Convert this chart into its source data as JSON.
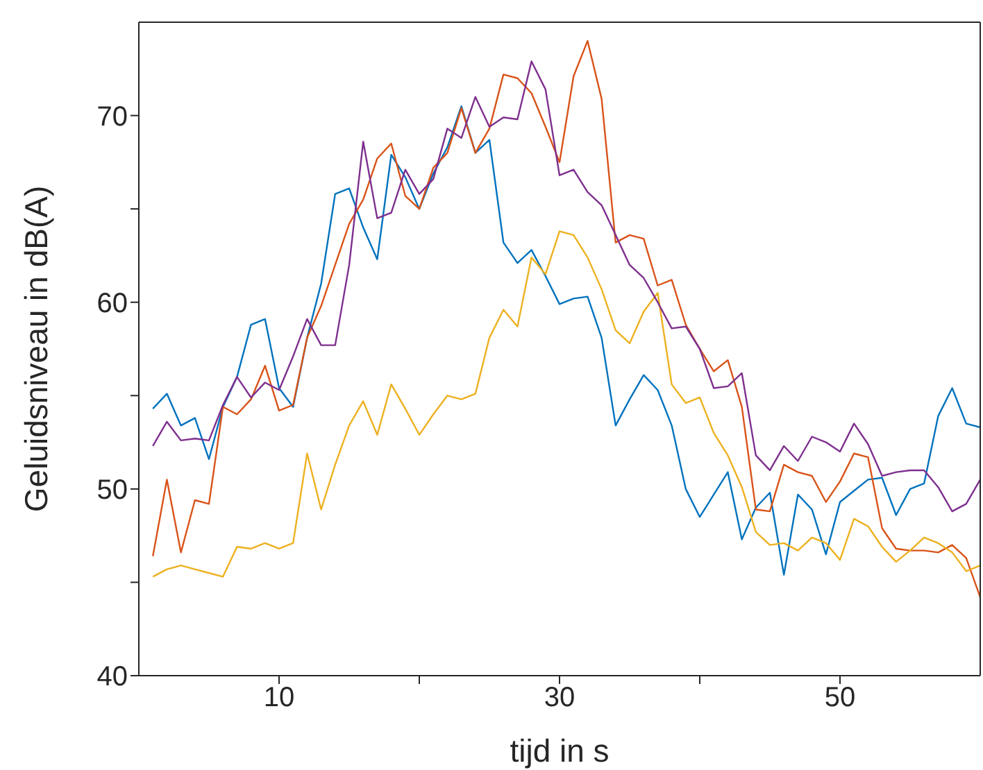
{
  "chart_data": {
    "type": "line",
    "xlabel": "tijd in s",
    "ylabel": "Geluidsniveau in dB(A)",
    "x": [
      1,
      2,
      3,
      4,
      5,
      6,
      7,
      8,
      9,
      10,
      11,
      12,
      13,
      14,
      15,
      16,
      17,
      18,
      19,
      20,
      21,
      22,
      23,
      24,
      25,
      26,
      27,
      28,
      29,
      30,
      31,
      32,
      33,
      34,
      35,
      36,
      37,
      38,
      39,
      40,
      41,
      42,
      43,
      44,
      45,
      46,
      47,
      48,
      49,
      50,
      51,
      52,
      53,
      54,
      55,
      56,
      57,
      58,
      59,
      60
    ],
    "xlim": [
      0,
      60
    ],
    "xticks": [
      10,
      {
        "value": 20,
        "label": null
      },
      30,
      {
        "value": 40,
        "label": null
      },
      50
    ],
    "ylim": [
      40,
      75
    ],
    "yticks": [
      40,
      {
        "value": 45,
        "label": null
      },
      50,
      {
        "value": 55,
        "label": null
      },
      60,
      {
        "value": 65,
        "label": null
      },
      70
    ],
    "marker": "none",
    "line_style": "solid",
    "series": [
      {
        "color": "#0072bd",
        "values": [
          54.3,
          55.1,
          53.4,
          53.8,
          51.6,
          54.4,
          56.0,
          58.8,
          59.1,
          55.4,
          54.4,
          58.1,
          61.0,
          65.8,
          66.1,
          64.0,
          62.3,
          67.9,
          66.7,
          65.0,
          66.9,
          68.3,
          70.5,
          68.0,
          68.7,
          63.2,
          62.1,
          62.8,
          61.4,
          59.9,
          60.2,
          60.3,
          58.1,
          53.4,
          54.8,
          56.1,
          55.3,
          53.4,
          50.0,
          48.5,
          49.7,
          50.9,
          47.3,
          49.0,
          49.8,
          45.4,
          49.7,
          48.9,
          46.5,
          49.3,
          49.9,
          50.5,
          50.6,
          48.6,
          50.0,
          50.3,
          53.9,
          55.4,
          53.5,
          53.3
        ]
      },
      {
        "color": "#d95319",
        "values": [
          46.4,
          50.5,
          46.6,
          49.4,
          49.2,
          54.4,
          54.0,
          54.8,
          56.6,
          54.2,
          54.5,
          58.1,
          59.8,
          62.0,
          64.2,
          65.5,
          67.7,
          68.5,
          65.7,
          65.0,
          67.2,
          68.0,
          70.4,
          68.0,
          69.3,
          72.2,
          72.0,
          71.2,
          69.4,
          67.5,
          72.1,
          74.0,
          70.9,
          63.2,
          63.6,
          63.4,
          60.9,
          61.2,
          58.8,
          57.5,
          56.3,
          56.9,
          54.4,
          48.9,
          48.8,
          51.3,
          50.9,
          50.7,
          49.3,
          50.4,
          51.9,
          51.7,
          47.9,
          46.8,
          46.7,
          46.7,
          46.6,
          47.0,
          46.3,
          44.2
        ]
      },
      {
        "color": "#edb120",
        "values": [
          45.3,
          45.7,
          45.9,
          45.7,
          45.5,
          45.3,
          46.9,
          46.8,
          47.1,
          46.8,
          47.1,
          51.9,
          48.9,
          51.3,
          53.4,
          54.7,
          52.9,
          55.6,
          54.3,
          52.9,
          54.0,
          55.0,
          54.8,
          55.1,
          58.1,
          59.6,
          58.7,
          62.4,
          61.5,
          63.8,
          63.6,
          62.4,
          60.7,
          58.5,
          57.8,
          59.5,
          60.5,
          55.6,
          54.6,
          54.9,
          53.0,
          51.8,
          50.1,
          47.7,
          47.0,
          47.1,
          46.7,
          47.4,
          47.1,
          46.2,
          48.4,
          48.0,
          46.9,
          46.1,
          46.7,
          47.4,
          47.1,
          46.6,
          45.6,
          45.9
        ]
      },
      {
        "color": "#7e2f8e",
        "values": [
          52.3,
          53.6,
          52.6,
          52.7,
          52.6,
          54.5,
          56.0,
          54.9,
          55.7,
          55.3,
          57.1,
          59.1,
          57.7,
          57.7,
          62.0,
          68.6,
          64.5,
          64.8,
          67.1,
          65.8,
          66.6,
          69.3,
          68.8,
          71.0,
          69.4,
          69.9,
          69.8,
          72.9,
          71.4,
          66.8,
          67.1,
          65.9,
          65.2,
          63.6,
          62.0,
          61.3,
          60.0,
          58.6,
          58.7,
          57.5,
          55.4,
          55.5,
          56.2,
          51.8,
          51.0,
          52.3,
          51.5,
          52.8,
          52.5,
          52.0,
          53.5,
          52.4,
          50.7,
          50.9,
          51.0,
          51.0,
          50.1,
          48.8,
          49.2,
          50.5
        ]
      }
    ]
  }
}
